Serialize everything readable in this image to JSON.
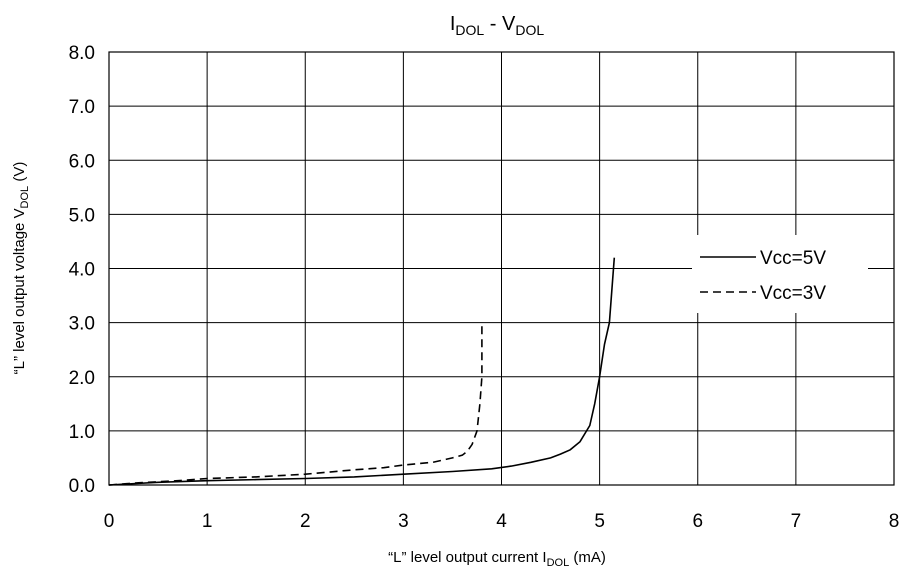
{
  "chart_data": {
    "type": "line",
    "title": {
      "main": "I",
      "sub1": "DOL",
      "sep": " - V",
      "sub2": "DOL"
    },
    "xlabel": {
      "main": "“L” level output current I",
      "sub": "DOL",
      "tail": " (mA)"
    },
    "ylabel": {
      "main": "“L” level output voltage V",
      "sub": "DOL",
      "tail": " (V)"
    },
    "xlim": [
      0,
      8
    ],
    "ylim": [
      0,
      8
    ],
    "xticks": [
      "0",
      "1",
      "2",
      "3",
      "4",
      "5",
      "6",
      "7",
      "8"
    ],
    "yticks": [
      "0.0",
      "1.0",
      "2.0",
      "3.0",
      "4.0",
      "5.0",
      "6.0",
      "7.0",
      "8.0"
    ],
    "grid": true,
    "legend_position": "right",
    "series": [
      {
        "name": "Vcc=5V",
        "style": "solid",
        "x": [
          0.0,
          0.5,
          1.0,
          1.5,
          2.0,
          2.5,
          3.0,
          3.5,
          3.9,
          4.1,
          4.3,
          4.5,
          4.6,
          4.7,
          4.8,
          4.9,
          4.95,
          5.0,
          5.05,
          5.1,
          5.15
        ],
        "y": [
          0.0,
          0.05,
          0.08,
          0.1,
          0.12,
          0.15,
          0.2,
          0.25,
          0.3,
          0.35,
          0.42,
          0.5,
          0.57,
          0.65,
          0.8,
          1.1,
          1.5,
          2.0,
          2.6,
          3.0,
          4.2
        ]
      },
      {
        "name": "Vcc=3V",
        "style": "dashed",
        "x": [
          0.0,
          0.3,
          0.7,
          1.0,
          1.5,
          2.0,
          2.5,
          2.8,
          3.0,
          3.3,
          3.5,
          3.6,
          3.65,
          3.7,
          3.75,
          3.78,
          3.8,
          3.8
        ],
        "y": [
          0.0,
          0.04,
          0.08,
          0.12,
          0.15,
          0.2,
          0.28,
          0.32,
          0.37,
          0.42,
          0.5,
          0.55,
          0.62,
          0.75,
          1.0,
          1.5,
          2.0,
          3.0
        ]
      }
    ]
  }
}
